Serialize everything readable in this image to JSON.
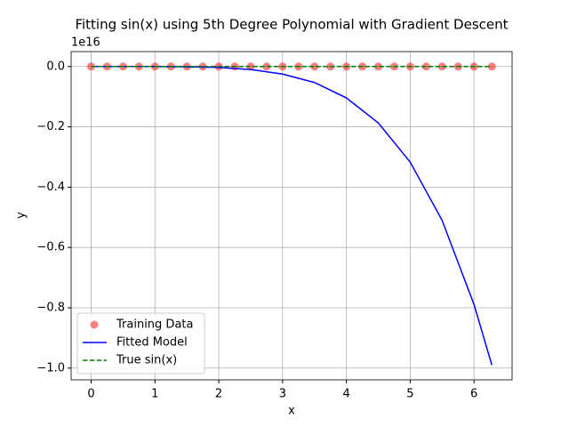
{
  "chart_data": {
    "type": "line",
    "title": "Fitting sin(x) using 5th Degree Polynomial with Gradient Descent",
    "xlabel": "x",
    "ylabel": "y",
    "y_offset_label": "1e16",
    "xlim": [
      -0.314,
      6.597
    ],
    "ylim": [
      -1.039,
      0.0495
    ],
    "xticks": [
      0,
      1,
      2,
      3,
      4,
      5,
      6
    ],
    "yticks": [
      {
        "value": 0,
        "label": "0.0"
      },
      {
        "value": -0.2,
        "label": "−0.2"
      },
      {
        "value": -0.4,
        "label": "−0.4"
      },
      {
        "value": -0.6,
        "label": "−0.6"
      },
      {
        "value": -0.8,
        "label": "−0.8"
      },
      {
        "value": -1.0,
        "label": "−1.0"
      }
    ],
    "grid": true,
    "legend": "lower left",
    "series": [
      {
        "name": "Training Data",
        "type": "scatter",
        "color": "#ff0000",
        "x": [
          0,
          0.25,
          0.5,
          0.75,
          1,
          1.25,
          1.5,
          1.75,
          2,
          2.25,
          2.5,
          2.75,
          3,
          3.25,
          3.5,
          3.75,
          4,
          4.25,
          4.5,
          4.75,
          5,
          5.25,
          5.5,
          5.75,
          6,
          6.28
        ],
        "values": [
          0,
          0,
          0,
          0,
          0,
          0,
          0,
          0,
          0,
          0,
          0,
          0,
          0,
          0,
          0,
          0,
          0,
          0,
          0,
          0,
          0,
          0,
          0,
          0,
          0,
          0
        ]
      },
      {
        "name": "Fitted Model",
        "type": "line",
        "color": "#0000ff",
        "linestyle": "solid",
        "x": [
          0,
          0.5,
          1,
          1.5,
          2,
          2.5,
          3,
          3.5,
          4,
          4.5,
          5,
          5.5,
          6,
          6.28
        ],
        "values": [
          0,
          0,
          0,
          -0.001,
          -0.003,
          -0.01,
          -0.025,
          -0.053,
          -0.104,
          -0.187,
          -0.317,
          -0.51,
          -0.789,
          -0.99
        ]
      },
      {
        "name": "True sin(x)",
        "type": "line",
        "color": "#008000",
        "linestyle": "dashed",
        "x": [
          0,
          1,
          2,
          3,
          4,
          5,
          6,
          6.28
        ],
        "values": [
          0,
          0,
          0,
          0,
          0,
          0,
          0,
          0
        ]
      }
    ]
  }
}
